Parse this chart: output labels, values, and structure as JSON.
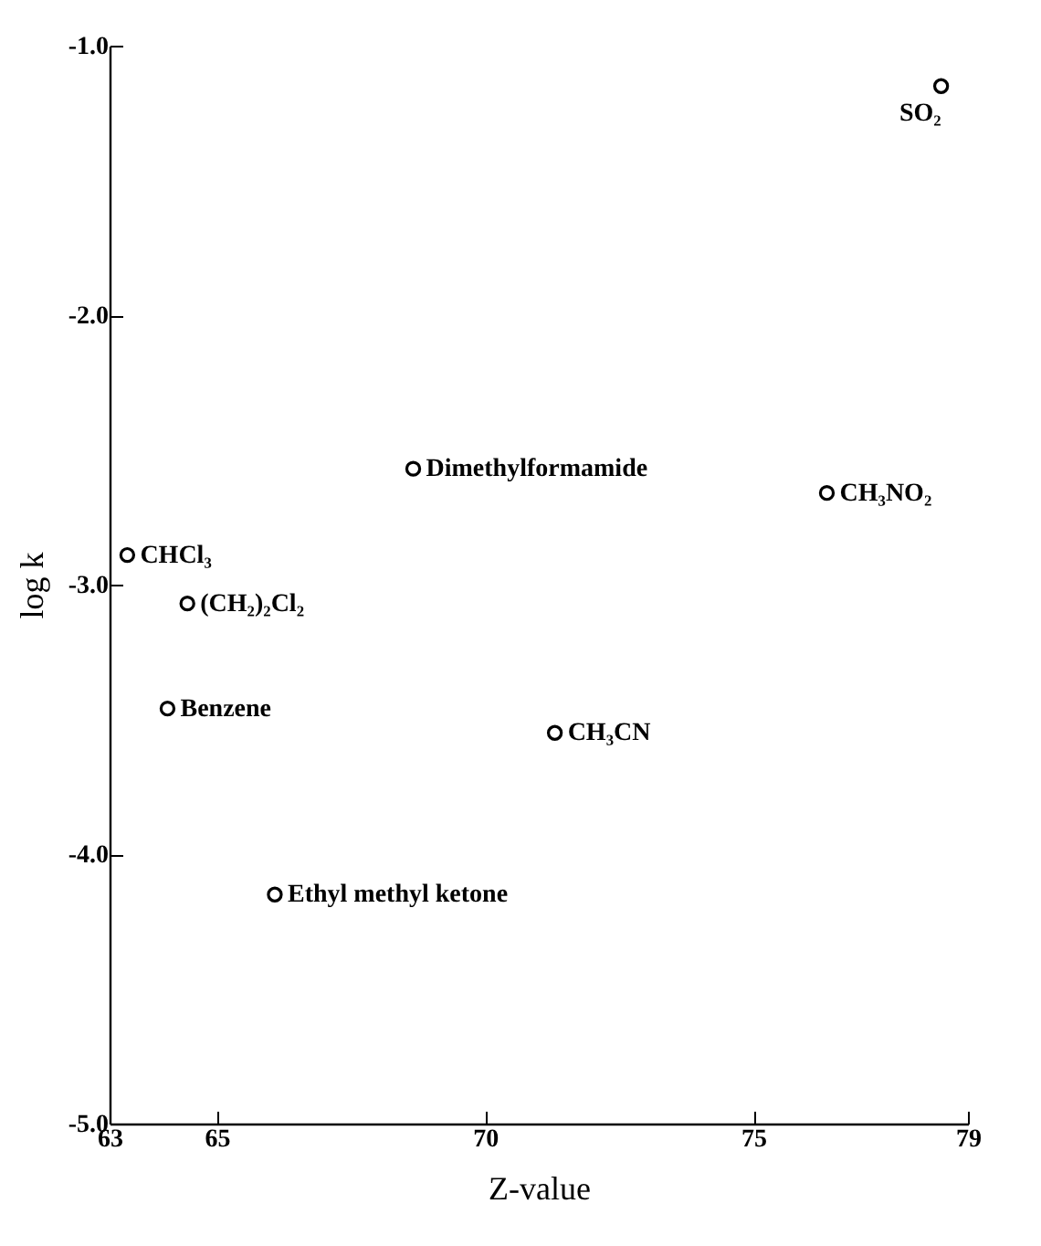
{
  "chart_data": {
    "type": "scatter",
    "xlabel": "Z-value",
    "ylabel": "log k",
    "x": [
      63.33,
      64.45,
      64.08,
      66.08,
      68.66,
      71.3,
      76.37,
      78.5
    ],
    "values": [
      -2.89,
      -3.07,
      -3.46,
      -4.15,
      -2.57,
      -3.55,
      -2.66,
      -1.15
    ],
    "color": "#000000",
    "marker": "circle",
    "xlim": [
      63,
      79
    ],
    "xticks": [
      63,
      65,
      70,
      75,
      79
    ],
    "ylim": [
      -5,
      -1
    ],
    "yticks": [
      {
        "value": -5,
        "label": "-5.0"
      },
      {
        "value": -4,
        "label": "-4.0"
      },
      {
        "value": -3,
        "label": "-3.0"
      },
      {
        "value": -2,
        "label": "-2.0"
      },
      {
        "value": -1,
        "label": "-1.0"
      }
    ],
    "annotations": [
      {
        "text": "CHCl₃",
        "x": 63.33,
        "y": -2.89
      },
      {
        "text": "(CH₂)₂Cl₂",
        "x": 64.45,
        "y": -3.07
      },
      {
        "text": "Benzene",
        "x": 64.08,
        "y": -3.46
      },
      {
        "text": "Ethyl methyl ketone",
        "x": 66.08,
        "y": -4.15
      },
      {
        "text": "Dimethylformamide",
        "x": 68.66,
        "y": -2.57
      },
      {
        "text": "CH₃CN",
        "x": 71.3,
        "y": -3.55
      },
      {
        "text": "CH₃NO₂",
        "x": 76.37,
        "y": -2.66
      },
      {
        "text": "SO₂",
        "x": 78.5,
        "y": -1.15
      }
    ],
    "grid": false
  }
}
